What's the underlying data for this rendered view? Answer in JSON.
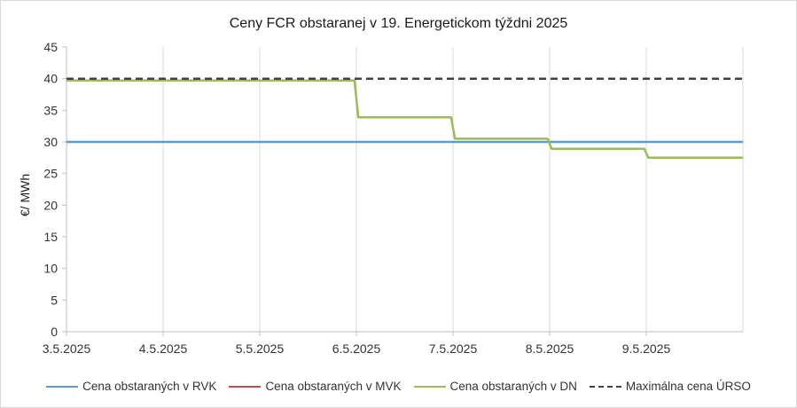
{
  "chart_data": {
    "type": "line",
    "title": "Ceny FCR obstaranej v 19. Energetickom týždni 2025",
    "xlabel": "",
    "ylabel": "€/ MWh",
    "ylim": [
      0,
      45
    ],
    "yticks": [
      "0",
      "5",
      "10",
      "15",
      "20",
      "25",
      "30",
      "35",
      "40",
      "45"
    ],
    "xlim": [
      0,
      7
    ],
    "x_tick_labels": [
      "3.5.2025",
      "4.5.2025",
      "5.5.2025",
      "6.5.2025",
      "7.5.2025",
      "8.5.2025",
      "9.5.2025"
    ],
    "grid": "vertical",
    "legend_position": "bottom",
    "series": [
      {
        "name": "Cena obstaraných v RVK",
        "color": "#5b9bd5",
        "style": "solid",
        "x": [
          0,
          7
        ],
        "y": [
          30,
          30
        ]
      },
      {
        "name": "Cena obstaraných v MVK",
        "color": "#c0504d",
        "style": "solid",
        "x": [],
        "y": []
      },
      {
        "name": "Cena obstaraných v DN",
        "color": "#9bbb59",
        "style": "solid",
        "x": [
          0,
          2.98,
          3.02,
          3.98,
          4.02,
          4.98,
          5.02,
          5.98,
          6.02,
          7
        ],
        "y": [
          39.7,
          39.7,
          33.9,
          33.9,
          30.5,
          30.5,
          28.9,
          28.9,
          27.5,
          27.5
        ]
      },
      {
        "name": "Maximálna cena ÚRSO",
        "color": "#404040",
        "style": "dashed",
        "x": [
          0,
          7
        ],
        "y": [
          40,
          40
        ]
      }
    ]
  }
}
